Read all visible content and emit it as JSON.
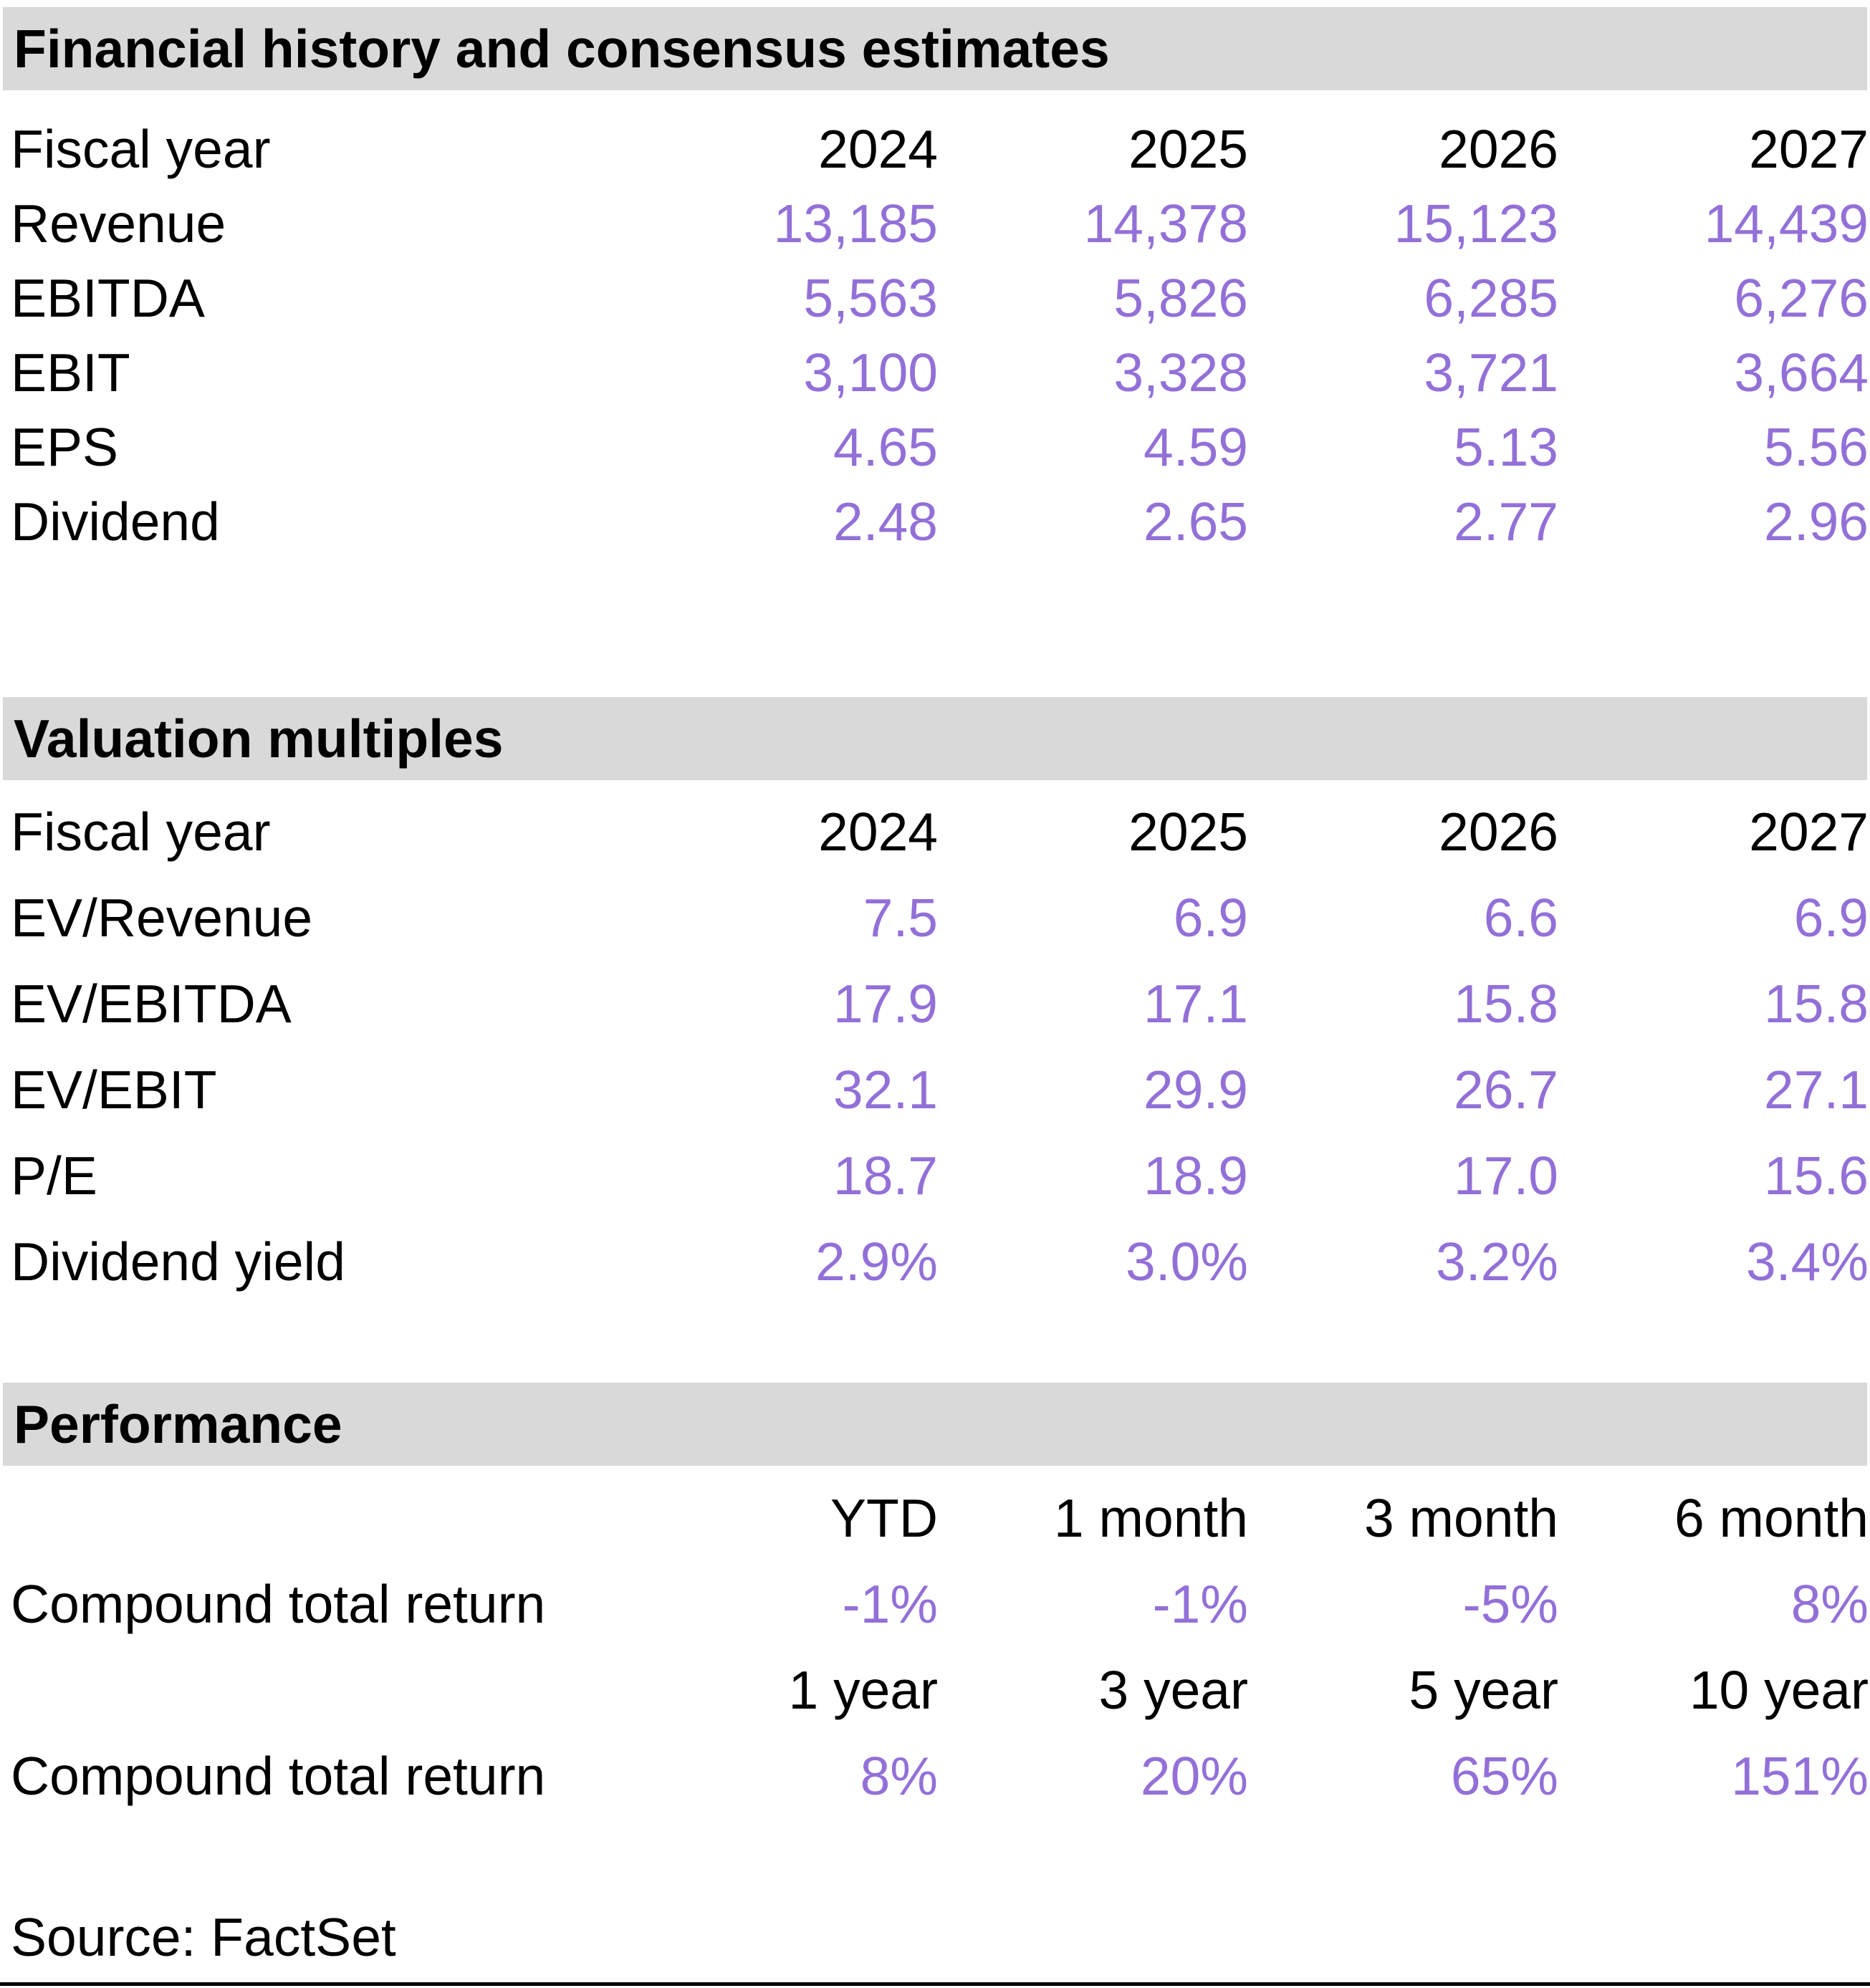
{
  "colors": {
    "accent": "#9370D8",
    "band_bg": "#D9D9D9",
    "rule": "#000000",
    "text": "#000000"
  },
  "sections": [
    {
      "title": "Financial history and consensus estimates",
      "header": {
        "label": "Fiscal year",
        "cols": [
          "2024",
          "2025",
          "2026",
          "2027"
        ]
      },
      "rows": [
        {
          "label": "Revenue",
          "values": [
            "13,185",
            "14,378",
            "15,123",
            "14,439"
          ]
        },
        {
          "label": "EBITDA",
          "values": [
            "5,563",
            "5,826",
            "6,285",
            "6,276"
          ]
        },
        {
          "label": "EBIT",
          "values": [
            "3,100",
            "3,328",
            "3,721",
            "3,664"
          ]
        },
        {
          "label": "EPS",
          "values": [
            "4.65",
            "4.59",
            "5.13",
            "5.56"
          ]
        },
        {
          "label": "Dividend",
          "values": [
            "2.48",
            "2.65",
            "2.77",
            "2.96"
          ]
        }
      ]
    },
    {
      "title": "Valuation multiples",
      "header": {
        "label": "Fiscal year",
        "cols": [
          "2024",
          "2025",
          "2026",
          "2027"
        ]
      },
      "rows": [
        {
          "label": "EV/Revenue",
          "values": [
            "7.5",
            "6.9",
            "6.6",
            "6.9"
          ]
        },
        {
          "label": "EV/EBITDA",
          "values": [
            "17.9",
            "17.1",
            "15.8",
            "15.8"
          ]
        },
        {
          "label": "EV/EBIT",
          "values": [
            "32.1",
            "29.9",
            "26.7",
            "27.1"
          ]
        },
        {
          "label": "P/E",
          "values": [
            "18.7",
            "18.9",
            "17.0",
            "15.6"
          ]
        },
        {
          "label": "Dividend yield",
          "values": [
            "2.9%",
            "3.0%",
            "3.2%",
            "3.4%"
          ]
        }
      ]
    },
    {
      "title": "Performance",
      "groups": [
        {
          "header": {
            "label": "",
            "cols": [
              "YTD",
              "1 month",
              "3 month",
              "6 month"
            ]
          },
          "rows": [
            {
              "label": "Compound total return",
              "values": [
                "-1%",
                "-1%",
                "-5%",
                "8%"
              ]
            }
          ]
        },
        {
          "header": {
            "label": "",
            "cols": [
              "1 year",
              "3 year",
              "5 year",
              "10 year"
            ]
          },
          "rows": [
            {
              "label": "Compound total return",
              "values": [
                "8%",
                "20%",
                "65%",
                "151%"
              ]
            }
          ]
        }
      ]
    }
  ],
  "source": "Source: FactSet"
}
